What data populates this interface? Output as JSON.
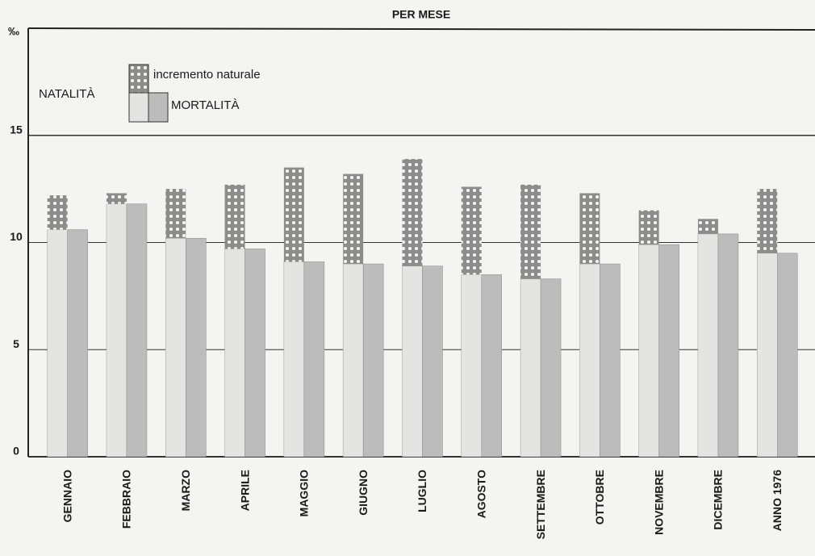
{
  "chart_data": {
    "type": "bar",
    "title": "PER MESE",
    "y_label": "‰",
    "categories": [
      "GENNAIO",
      "FEBBRAIO",
      "MARZO",
      "APRILE",
      "MAGGIO",
      "GIUGNO",
      "LUGLIO",
      "AGOSTO",
      "SETTEMBRE",
      "OTTOBRE",
      "NOVEMBRE",
      "DICEMBRE",
      "ANNO 1976"
    ],
    "natality_label": "NATALITÀ",
    "series": [
      {
        "name": "MORTALITÀ",
        "color": "#bcbcbc",
        "values": [
          10.6,
          11.8,
          10.2,
          9.7,
          9.1,
          9.0,
          8.9,
          8.5,
          8.3,
          9.0,
          9.9,
          10.4,
          9.5
        ]
      },
      {
        "name": "incremento naturale",
        "color": "#8c8c8c",
        "values": [
          1.6,
          0.5,
          2.3,
          3.0,
          4.4,
          4.2,
          5.0,
          4.1,
          4.4,
          3.3,
          1.6,
          0.7,
          3.0
        ]
      }
    ],
    "natality_color": "#e4e4e2",
    "ylim": [
      0,
      20
    ],
    "yticks": [
      0,
      5,
      10,
      15
    ],
    "grid": true
  }
}
